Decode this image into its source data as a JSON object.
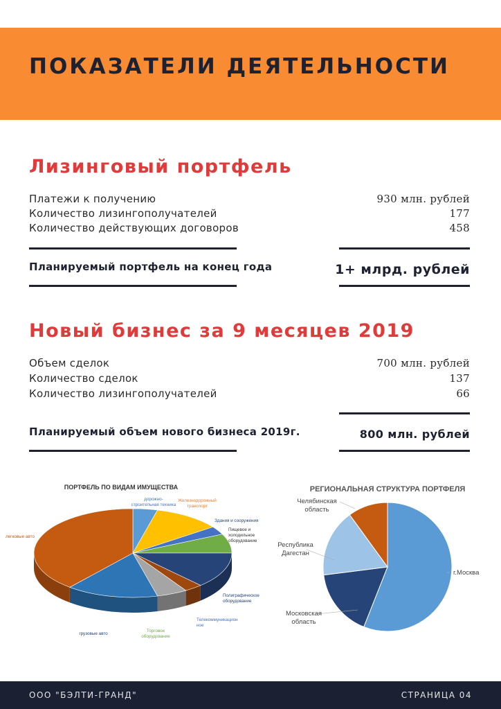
{
  "header": {
    "title": "ПОКАЗАТЕЛИ ДЕЯТЕЛЬНОСТИ"
  },
  "portfolio": {
    "title": "Лизинговый портфель",
    "rows": [
      {
        "label": "Платежи к получению",
        "value": "930 млн. рублей"
      },
      {
        "label": "Количество лизингополучателей",
        "value": "177"
      },
      {
        "label": "Количество действующих договоров",
        "value": "458"
      }
    ],
    "plan_label": "Планируемый портфель на конец года",
    "plan_value": "1+ млрд. рублей"
  },
  "new_business": {
    "title": "Новый бизнес за 9 месяцев 2019",
    "rows": [
      {
        "label": "Объем сделок",
        "value": "700 млн. рублей"
      },
      {
        "label": "Количество сделок",
        "value": "137"
      },
      {
        "label": "Количество лизингополучателей",
        "value": "66"
      }
    ],
    "plan_label": "Планируемый объем нового бизнеса 2019г.",
    "plan_value": "800 млн. рублей"
  },
  "chart_data": [
    {
      "type": "pie",
      "title": "ПОРТФЕЛЬ ПО ВИДАМ ИМУЩЕСТВА",
      "categories": [
        "дорожно-строительная техника",
        "Железнодорожный транспорт",
        "Здания и сооружения",
        "Пищевое и холодильное оборудование",
        "Полиграфическое оборудование",
        "Телекоммуникационное",
        "Торговое оборудование",
        "грузовые авто",
        "легковые авто"
      ],
      "label_lines": [
        [
          "дорожно-",
          "строительная техника"
        ],
        [
          "Железнодорожный",
          "транспорт"
        ],
        [
          "Здания и сооружения"
        ],
        [
          "Пищевое и",
          "холодильное",
          "оборудование"
        ],
        [
          "Полиграфическое",
          "оборудование"
        ],
        [
          "Телекоммуникацион",
          "ное"
        ],
        [
          "Торговое",
          "оборудование"
        ],
        [
          "грузовые авто"
        ],
        [
          "легковые авто"
        ]
      ],
      "values": [
        4,
        11,
        3,
        7,
        13,
        3,
        5,
        15,
        39
      ],
      "colors": [
        "#5b9bd5",
        "#ffc000",
        "#4472c4",
        "#70ad47",
        "#264478",
        "#9e480e",
        "#a5a5a5",
        "#2e75b6",
        "#c55a11"
      ],
      "label_colors": [
        "#4472c4",
        "#ed7d31",
        "#264478",
        "#333333",
        "#264478",
        "#4472c4",
        "#70ad47",
        "#264478",
        "#c55a11"
      ]
    },
    {
      "type": "pie",
      "title": "РЕГИОНАЛЬНАЯ СТРУКТУРА ПОРТФЕЛЯ",
      "categories": [
        "г.Москва",
        "Московская область",
        "Республика Дагестан",
        "Челябинская область"
      ],
      "label_lines": [
        [
          "г.Москва"
        ],
        [
          "Московская",
          "область"
        ],
        [
          "Республика",
          "Дагестан"
        ],
        [
          "Челябинская",
          "область"
        ]
      ],
      "values": [
        56,
        17,
        17,
        10
      ],
      "colors": [
        "#5b9bd5",
        "#264478",
        "#9dc3e6",
        "#c55a11"
      ]
    }
  ],
  "footer": {
    "company": "ООО \"БЭЛТИ-ГРАНД\"",
    "page": "СТРАНИЦА 04"
  }
}
